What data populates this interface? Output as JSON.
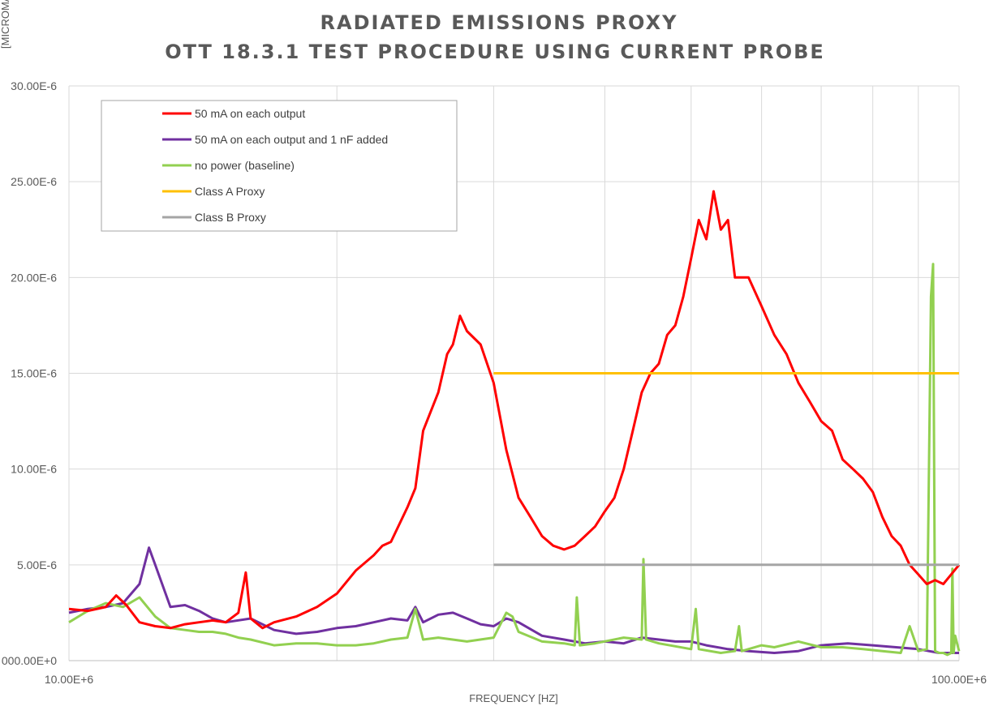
{
  "chart_data": {
    "type": "line",
    "title_line1": "RADIATED EMISSIONS PROXY",
    "title_line2": "OTT 18.3.1 TEST PROCEDURE USING CURRENT PROBE",
    "xlabel": "FREQUENCY [HZ]",
    "ylabel": "[MICROMAPS]",
    "x_scale": "log",
    "xlim": [
      10000000,
      100000000
    ],
    "ylim": [
      0,
      3e-05
    ],
    "x_ticks": [
      {
        "value": 10000000,
        "label": "10.00E+6"
      },
      {
        "value": 100000000,
        "label": "100.00E+6"
      }
    ],
    "y_ticks": [
      {
        "value": 0,
        "label": "000.00E+0"
      },
      {
        "value": 5e-06,
        "label": "5.00E-6"
      },
      {
        "value": 1e-05,
        "label": "10.00E-6"
      },
      {
        "value": 1.5e-05,
        "label": "15.00E-6"
      },
      {
        "value": 2e-05,
        "label": "20.00E-6"
      },
      {
        "value": 2.5e-05,
        "label": "25.00E-6"
      },
      {
        "value": 3e-05,
        "label": "30.00E-6"
      }
    ],
    "grid": true,
    "legend_position": "top-left",
    "series": [
      {
        "name": "50 mA on each output",
        "color": "#ff0000",
        "x": [
          10000000,
          10500000,
          11000000,
          11300000,
          11600000,
          12000000,
          12500000,
          13000000,
          13500000,
          14000000,
          14500000,
          15000000,
          15500000,
          15800000,
          16000000,
          16500000,
          17000000,
          18000000,
          19000000,
          20000000,
          21000000,
          22000000,
          22500000,
          23000000,
          24000000,
          24500000,
          25000000,
          26000000,
          26600000,
          27000000,
          27500000,
          28000000,
          29000000,
          30000000,
          31000000,
          32000000,
          33000000,
          34000000,
          35000000,
          36000000,
          37000000,
          38000000,
          39000000,
          40000000,
          41000000,
          42000000,
          43000000,
          44000000,
          45000000,
          46000000,
          47000000,
          48000000,
          49000000,
          50000000,
          51000000,
          52000000,
          53000000,
          54000000,
          55000000,
          56000000,
          58000000,
          60000000,
          62000000,
          64000000,
          66000000,
          68000000,
          70000000,
          72000000,
          74000000,
          76000000,
          78000000,
          80000000,
          82000000,
          84000000,
          86000000,
          88000000,
          90000000,
          92000000,
          94000000,
          96000000,
          98000000,
          100000000
        ],
        "values": [
          2.7e-06,
          2.6e-06,
          2.8e-06,
          3.4e-06,
          2.9e-06,
          2e-06,
          1.8e-06,
          1.7e-06,
          1.9e-06,
          2e-06,
          2.1e-06,
          2e-06,
          2.5e-06,
          4.6e-06,
          2.2e-06,
          1.7e-06,
          2e-06,
          2.3e-06,
          2.8e-06,
          3.5e-06,
          4.7e-06,
          5.5e-06,
          6e-06,
          6.2e-06,
          8e-06,
          9e-06,
          1.2e-05,
          1.4e-05,
          1.6e-05,
          1.65e-05,
          1.8e-05,
          1.72e-05,
          1.65e-05,
          1.45e-05,
          1.1e-05,
          8.5e-06,
          7.5e-06,
          6.5e-06,
          6e-06,
          5.8e-06,
          6e-06,
          6.5e-06,
          7e-06,
          7.8e-06,
          8.5e-06,
          1e-05,
          1.2e-05,
          1.4e-05,
          1.5e-05,
          1.55e-05,
          1.7e-05,
          1.75e-05,
          1.9e-05,
          2.1e-05,
          2.3e-05,
          2.2e-05,
          2.45e-05,
          2.25e-05,
          2.3e-05,
          2e-05,
          2e-05,
          1.85e-05,
          1.7e-05,
          1.6e-05,
          1.45e-05,
          1.35e-05,
          1.25e-05,
          1.2e-05,
          1.05e-05,
          1e-05,
          9.5e-06,
          8.8e-06,
          7.5e-06,
          6.5e-06,
          6e-06,
          5e-06,
          4.5e-06,
          4e-06,
          4.2e-06,
          4e-06,
          4.5e-06,
          5e-06
        ]
      },
      {
        "name": "50 mA on each output and 1 nF added",
        "color": "#7030a0",
        "x": [
          10000000,
          10500000,
          11000000,
          11500000,
          12000000,
          12300000,
          12500000,
          13000000,
          13500000,
          14000000,
          14500000,
          15000000,
          16000000,
          17000000,
          18000000,
          19000000,
          20000000,
          21000000,
          22000000,
          23000000,
          24000000,
          24500000,
          25000000,
          26000000,
          27000000,
          28000000,
          29000000,
          30000000,
          31000000,
          32000000,
          34000000,
          36000000,
          38000000,
          40000000,
          42000000,
          44000000,
          46000000,
          48000000,
          50000000,
          52000000,
          55000000,
          58000000,
          62000000,
          66000000,
          70000000,
          75000000,
          80000000,
          85000000,
          90000000,
          95000000,
          100000000
        ],
        "values": [
          2.5e-06,
          2.7e-06,
          2.8e-06,
          3e-06,
          4e-06,
          5.9e-06,
          5e-06,
          2.8e-06,
          2.9e-06,
          2.6e-06,
          2.2e-06,
          2e-06,
          2.2e-06,
          1.6e-06,
          1.4e-06,
          1.5e-06,
          1.7e-06,
          1.8e-06,
          2e-06,
          2.2e-06,
          2.1e-06,
          2.8e-06,
          2e-06,
          2.4e-06,
          2.5e-06,
          2.2e-06,
          1.9e-06,
          1.8e-06,
          2.2e-06,
          2e-06,
          1.3e-06,
          1.1e-06,
          9e-07,
          1e-06,
          9e-07,
          1.2e-06,
          1.1e-06,
          1e-06,
          1e-06,
          8e-07,
          6e-07,
          5e-07,
          4e-07,
          5e-07,
          8e-07,
          9e-07,
          8e-07,
          7e-07,
          6e-07,
          4e-07,
          4e-07
        ]
      },
      {
        "name": "no power (baseline)",
        "color": "#92d050",
        "x": [
          10000000,
          10500000,
          11000000,
          11500000,
          12000000,
          12500000,
          13000000,
          13500000,
          14000000,
          14500000,
          15000000,
          15500000,
          16000000,
          17000000,
          18000000,
          19000000,
          20000000,
          21000000,
          22000000,
          23000000,
          24000000,
          24500000,
          25000000,
          26000000,
          28000000,
          30000000,
          31000000,
          31500000,
          32000000,
          34000000,
          36000000,
          37000000,
          37200000,
          37500000,
          39000000,
          42000000,
          44000000,
          44200000,
          44500000,
          46000000,
          50000000,
          50600000,
          51000000,
          54000000,
          56000000,
          56600000,
          57000000,
          60000000,
          62000000,
          66000000,
          70000000,
          74000000,
          78000000,
          82000000,
          86000000,
          88000000,
          90000000,
          92000000,
          93000000,
          93500000,
          94000000,
          95000000,
          96000000,
          97000000,
          98000000,
          98300000,
          98600000,
          99000000,
          100000000
        ],
        "values": [
          2e-06,
          2.6e-06,
          3e-06,
          2.8e-06,
          3.3e-06,
          2.3e-06,
          1.7e-06,
          1.6e-06,
          1.5e-06,
          1.5e-06,
          1.4e-06,
          1.2e-06,
          1.1e-06,
          8e-07,
          9e-07,
          9e-07,
          8e-07,
          8e-07,
          9e-07,
          1.1e-06,
          1.2e-06,
          2.7e-06,
          1.1e-06,
          1.2e-06,
          1e-06,
          1.2e-06,
          2.5e-06,
          2.3e-06,
          1.5e-06,
          1e-06,
          9e-07,
          8e-07,
          3.3e-06,
          8e-07,
          9e-07,
          1.2e-06,
          1.1e-06,
          5.3e-06,
          1.1e-06,
          9e-07,
          6e-07,
          2.7e-06,
          6e-07,
          4e-07,
          5e-07,
          1.8e-06,
          5e-07,
          8e-07,
          7e-07,
          1e-06,
          7e-07,
          7e-07,
          6e-07,
          5e-07,
          4e-07,
          1.8e-06,
          5e-07,
          6e-07,
          1.9e-05,
          2.07e-05,
          5e-07,
          4e-07,
          4e-07,
          3e-07,
          4e-07,
          4.8e-06,
          4e-07,
          1.3e-06,
          5e-07
        ]
      },
      {
        "name": "Class A Proxy",
        "color": "#ffc000",
        "x": [
          30000000,
          100000000
        ],
        "values": [
          1.5e-05,
          1.5e-05
        ]
      },
      {
        "name": "Class B Proxy",
        "color": "#a5a5a5",
        "x": [
          30000000,
          100000000
        ],
        "values": [
          5e-06,
          5e-06
        ]
      }
    ]
  }
}
